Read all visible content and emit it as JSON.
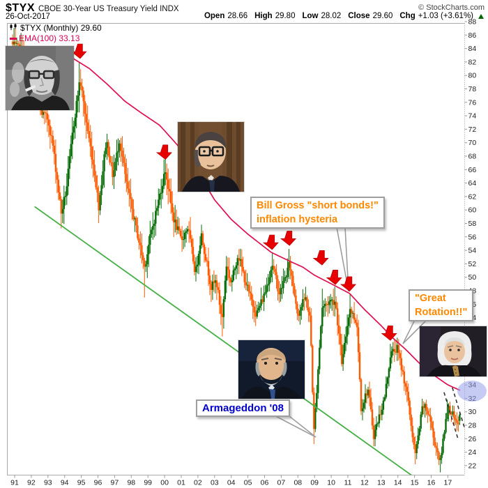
{
  "header": {
    "symbol": "$TYX",
    "title": "CBOE 30-Year US Treasury Yield INDX",
    "source": "© StockCharts.com",
    "date": "26-Oct-2017",
    "quote": {
      "items": [
        {
          "label": "Open",
          "value": "28.66"
        },
        {
          "label": "High",
          "value": "29.80"
        },
        {
          "label": "Low",
          "value": "28.02"
        },
        {
          "label": "Close",
          "value": "29.60"
        },
        {
          "label": "Chg",
          "value": "+1.03 (+3.61%)"
        }
      ],
      "change_direction": "up"
    }
  },
  "legend": {
    "series": "$TYX (Monthly) 29.60",
    "ema": "EMA(100) 33.13"
  },
  "annotations": {
    "bill_gross": {
      "line1": "Bill Gross \"short bonds!\"",
      "line2": "inflation hysteria"
    },
    "great_rotation": {
      "line1": "\"Great",
      "line2": "Rotation!!\""
    },
    "armageddon": {
      "text": "Armageddon '08"
    }
  },
  "photos": [
    {
      "description": "black-and-white portrait of bespectacled man with cigar smoke"
    },
    {
      "description": "color portrait of man with large glasses, dark suit, library background"
    },
    {
      "description": "portrait of bald man with gray beard, dark background"
    },
    {
      "description": "portrait of woman with white bob haircut, dark jacket"
    }
  ],
  "colors": {
    "candle_up": "#066d06",
    "candle_down": "#ff5a00",
    "ema": "#e0104f",
    "trendline": "#44b044",
    "arrow": "#e60000",
    "annotation_orange": "#ff8800",
    "annotation_blue": "#0000cc",
    "highlight_ellipse": "#98a0ea",
    "dashed_line": "#333333",
    "change_up": "#006600",
    "axis_text": "#1a1a1a",
    "border": "#aaaaaa"
  },
  "chart_data": {
    "type": "candlestick",
    "title": "$TYX CBOE 30-Year US Treasury Yield INDX (Monthly)",
    "y_axis": {
      "label_min": 22,
      "label_max": 88,
      "step": 2,
      "ticks_every": 2
    },
    "x_axis": {
      "years": [
        "91",
        "92",
        "93",
        "94",
        "95",
        "96",
        "97",
        "98",
        "99",
        "00",
        "01",
        "02",
        "03",
        "04",
        "05",
        "06",
        "07",
        "08",
        "09",
        "10",
        "11",
        "12",
        "13",
        "14",
        "15",
        "16",
        "17"
      ]
    },
    "series_keypoints": [
      [
        1990.88,
        84.5
      ],
      [
        1991.2,
        84.0
      ],
      [
        1991.5,
        83.0
      ],
      [
        1991.9,
        79.5
      ],
      [
        1992.3,
        79.0
      ],
      [
        1992.6,
        74.5
      ],
      [
        1993.0,
        73.5
      ],
      [
        1993.3,
        69.5
      ],
      [
        1993.8,
        59.5
      ],
      [
        1994.1,
        63.0
      ],
      [
        1994.5,
        72.0
      ],
      [
        1994.92,
        79.5
      ],
      [
        1995.3,
        73.0
      ],
      [
        1995.8,
        65.5
      ],
      [
        1996.05,
        60.5
      ],
      [
        1996.5,
        70.5
      ],
      [
        1996.9,
        65.0
      ],
      [
        1997.3,
        70.5
      ],
      [
        1997.7,
        64.0
      ],
      [
        1998.1,
        59.5
      ],
      [
        1998.8,
        51.5
      ],
      [
        1999.1,
        55.5
      ],
      [
        1999.6,
        61.0
      ],
      [
        2000.05,
        66.0
      ],
      [
        2000.5,
        59.0
      ],
      [
        2001.0,
        55.5
      ],
      [
        2001.4,
        57.5
      ],
      [
        2001.85,
        50.5
      ],
      [
        2002.2,
        56.5
      ],
      [
        2002.8,
        48.5
      ],
      [
        2003.1,
        49.5
      ],
      [
        2003.45,
        43.5
      ],
      [
        2003.7,
        52.0
      ],
      [
        2004.0,
        49.0
      ],
      [
        2004.4,
        53.5
      ],
      [
        2005.0,
        48.0
      ],
      [
        2005.5,
        44.5
      ],
      [
        2006.0,
        47.5
      ],
      [
        2006.45,
        52.0
      ],
      [
        2006.9,
        47.5
      ],
      [
        2007.5,
        52.0
      ],
      [
        2008.0,
        44.5
      ],
      [
        2008.45,
        47.0
      ],
      [
        2008.75,
        43.5
      ],
      [
        2008.96,
        27.0
      ],
      [
        2009.2,
        36.0
      ],
      [
        2009.45,
        45.5
      ],
      [
        2009.95,
        46.5
      ],
      [
        2010.25,
        46.5
      ],
      [
        2010.65,
        37.0
      ],
      [
        2011.1,
        45.5
      ],
      [
        2011.55,
        43.0
      ],
      [
        2011.8,
        30.5
      ],
      [
        2012.2,
        33.5
      ],
      [
        2012.55,
        26.5
      ],
      [
        2012.9,
        29.5
      ],
      [
        2013.2,
        32.0
      ],
      [
        2013.55,
        38.5
      ],
      [
        2013.95,
        39.5
      ],
      [
        2014.5,
        33.5
      ],
      [
        2015.05,
        23.5
      ],
      [
        2015.5,
        31.0
      ],
      [
        2015.9,
        29.5
      ],
      [
        2016.1,
        26.5
      ],
      [
        2016.55,
        22.5
      ],
      [
        2016.95,
        30.5
      ],
      [
        2017.2,
        30.2
      ],
      [
        2017.5,
        27.8
      ],
      [
        2017.79,
        29.6
      ]
    ],
    "ema_keypoints": [
      [
        1994.4,
        82.7
      ],
      [
        1995.5,
        81.0
      ],
      [
        1996.6,
        78.6
      ],
      [
        1997.6,
        76.2
      ],
      [
        1998.5,
        74.6
      ],
      [
        1999.7,
        72.6
      ],
      [
        2000.5,
        70.4
      ],
      [
        2001.5,
        67.6
      ],
      [
        2002.2,
        64.8
      ],
      [
        2003.0,
        61.5
      ],
      [
        2004.0,
        58.6
      ],
      [
        2005.0,
        56.4
      ],
      [
        2006.4,
        53.7
      ],
      [
        2007.5,
        52.4
      ],
      [
        2008.3,
        51.5
      ],
      [
        2009.0,
        50.3
      ],
      [
        2010.1,
        48.9
      ],
      [
        2011.1,
        47.6
      ],
      [
        2012.0,
        45.2
      ],
      [
        2013.0,
        42.8
      ],
      [
        2013.6,
        41.2
      ],
      [
        2014.5,
        39.2
      ],
      [
        2015.3,
        37.2
      ],
      [
        2016.3,
        35.2
      ],
      [
        2017.0,
        34.0
      ],
      [
        2017.79,
        33.13
      ]
    ],
    "wick_overrides": [
      {
        "t": 1993.8,
        "low": 57.6
      },
      {
        "t": 1994.92,
        "high": 82.0
      },
      {
        "t": 1998.8,
        "low": 47.0
      },
      {
        "t": 2000.05,
        "high": 67.6
      },
      {
        "t": 2003.45,
        "low": 41.2
      },
      {
        "t": 2006.45,
        "high": 53.6
      },
      {
        "t": 2007.5,
        "high": 54.2
      },
      {
        "t": 2008.96,
        "low": 25.2
      },
      {
        "t": 2009.45,
        "high": 48.3
      },
      {
        "t": 2010.25,
        "high": 48.6
      },
      {
        "t": 2011.1,
        "high": 47.6
      },
      {
        "t": 2013.55,
        "high": 40.1
      },
      {
        "t": 2015.05,
        "low": 22.2
      },
      {
        "t": 2016.55,
        "low": 21.0
      },
      {
        "t": 2016.95,
        "high": 31.8
      }
    ],
    "last_candle": {
      "open": 28.66,
      "high": 29.8,
      "low": 28.02,
      "close": 29.6
    },
    "ema_last_value": 33.13,
    "trendline": {
      "from": [
        1992.2,
        60.5
      ],
      "to": [
        2015.2,
        19.9
      ]
    },
    "dashed_lines": [
      {
        "from": [
          2016.77,
          32.9
        ],
        "to": [
          2017.63,
          25.8
        ]
      },
      {
        "from": [
          2017.27,
          33.6
        ],
        "to": [
          2018.1,
          26.8
        ]
      }
    ],
    "arrows": [
      [
        1994.93,
        82.3
      ],
      [
        2000.05,
        67.3
      ],
      [
        2006.45,
        53.9
      ],
      [
        2007.5,
        54.5
      ],
      [
        2009.45,
        51.6
      ],
      [
        2010.25,
        48.7
      ],
      [
        2011.1,
        47.7
      ],
      [
        2013.55,
        40.4
      ]
    ],
    "highlighted_axis_values": [
      34,
      32
    ],
    "noise_seed": 7
  }
}
